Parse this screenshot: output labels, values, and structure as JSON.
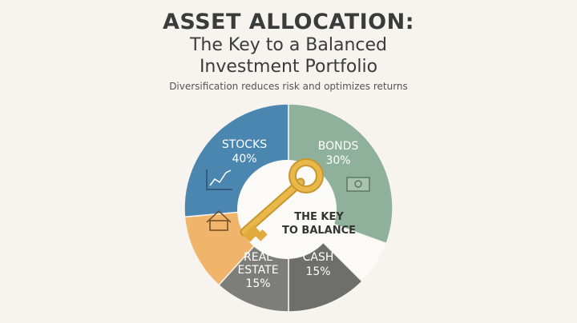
{
  "header": {
    "title": "ASSET ALLOCATION:",
    "subtitle_line1": "The Key to a Balanced",
    "subtitle_line2": "Investment Portfolio",
    "tagline": "Diversification reduces risk and optimizes returns"
  },
  "chart_data": {
    "type": "pie",
    "title": "ASSET ALLOCATION:",
    "categories": [
      "STOCKS",
      "BONDS",
      "CASH",
      "REAL ESTATE"
    ],
    "values": [
      40,
      30,
      15,
      15
    ],
    "labels": [
      {
        "name": "STOCKS",
        "value": "40%",
        "color": "#4a86b0",
        "icon": "chart-trend-icon"
      },
      {
        "name": "BONDS",
        "value": "30%",
        "color": "#8fb09a",
        "icon": "money-bill-icon"
      },
      {
        "name": "CASH",
        "value": "15%",
        "color": "#6e6e6a"
      },
      {
        "name": "REAL",
        "name2": "ESTATE",
        "value": "15%",
        "color": "#7d7d79"
      }
    ],
    "extra_colors": {
      "house_segment": "#f0b46a",
      "white_segment": "#fbfaf6"
    },
    "center_text": [
      "THE KEY",
      "TO BALANCE"
    ],
    "center_icon": "key-icon",
    "legend": "none"
  }
}
